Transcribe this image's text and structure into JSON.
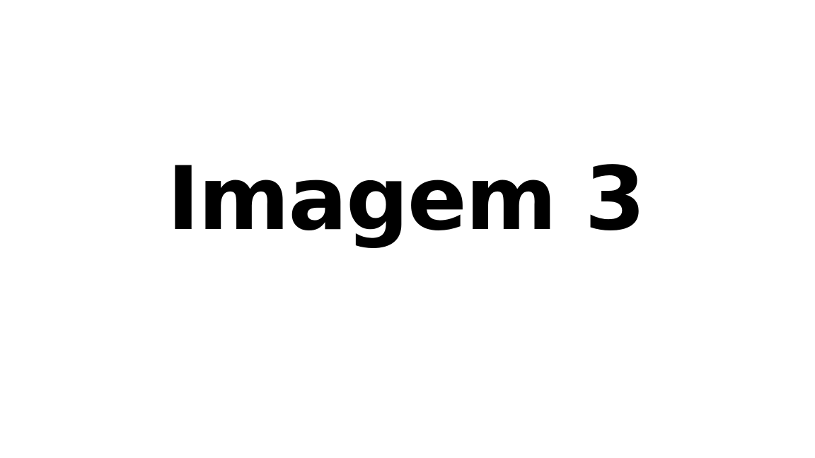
{
  "slide": {
    "title": "Imagem 3"
  },
  "colors": {
    "background": "#ffffff",
    "text": "#000000"
  }
}
